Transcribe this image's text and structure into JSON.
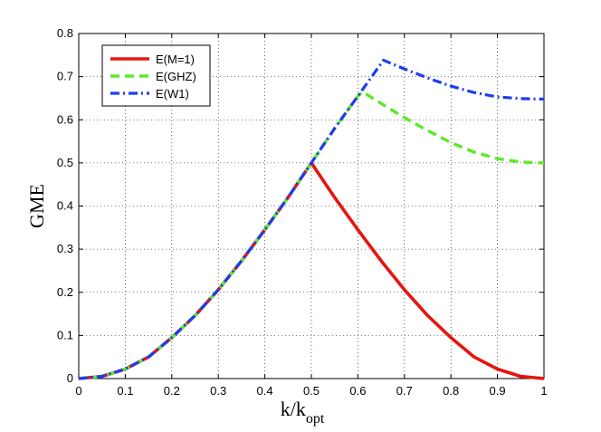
{
  "chart_data": {
    "type": "line",
    "title": "",
    "xlabel": "k/k",
    "xlabel_sub": "opt",
    "ylabel": "GME",
    "xlim": [
      0,
      1
    ],
    "ylim": [
      0,
      0.8
    ],
    "x_ticks": [
      0,
      0.1,
      0.2,
      0.3,
      0.4,
      0.5,
      0.6,
      0.7,
      0.8,
      0.9,
      1
    ],
    "x_tick_labels": [
      "0",
      "0.1",
      "0.2",
      "0.3",
      "0.4",
      "0.5",
      "0.6",
      "0.7",
      "0.8",
      "0.9",
      "1"
    ],
    "y_ticks": [
      0,
      0.1,
      0.2,
      0.3,
      0.4,
      0.5,
      0.6,
      0.7,
      0.8
    ],
    "y_tick_labels": [
      "0",
      "0.1",
      "0.2",
      "0.3",
      "0.4",
      "0.5",
      "0.6",
      "0.7",
      "0.8"
    ],
    "grid": true,
    "legend_position": "top-left",
    "series": [
      {
        "name": "E(M=1)",
        "color": "#e8140f",
        "style": "solid",
        "x": [
          0,
          0.05,
          0.1,
          0.15,
          0.2,
          0.25,
          0.3,
          0.35,
          0.4,
          0.45,
          0.5,
          0.55,
          0.6,
          0.65,
          0.7,
          0.75,
          0.8,
          0.85,
          0.9,
          0.95,
          1
        ],
        "y": [
          0,
          0.005,
          0.022,
          0.05,
          0.095,
          0.146,
          0.206,
          0.273,
          0.345,
          0.42,
          0.5,
          0.42,
          0.345,
          0.273,
          0.206,
          0.146,
          0.095,
          0.05,
          0.022,
          0.005,
          0
        ]
      },
      {
        "name": "E(GHZ)",
        "color": "#5ee82b",
        "style": "dashed",
        "x": [
          0,
          0.05,
          0.1,
          0.15,
          0.2,
          0.25,
          0.3,
          0.35,
          0.4,
          0.45,
          0.5,
          0.55,
          0.6,
          0.61,
          0.65,
          0.7,
          0.75,
          0.8,
          0.85,
          0.9,
          0.95,
          1
        ],
        "y": [
          0,
          0.005,
          0.022,
          0.05,
          0.095,
          0.146,
          0.206,
          0.273,
          0.345,
          0.42,
          0.5,
          0.58,
          0.655,
          0.665,
          0.638,
          0.605,
          0.575,
          0.547,
          0.525,
          0.51,
          0.502,
          0.5
        ]
      },
      {
        "name": "E(W1)",
        "color": "#1e3cf0",
        "style": "dashdot",
        "x": [
          0,
          0.05,
          0.1,
          0.15,
          0.2,
          0.25,
          0.3,
          0.35,
          0.4,
          0.45,
          0.5,
          0.55,
          0.6,
          0.655,
          0.7,
          0.75,
          0.8,
          0.85,
          0.9,
          0.95,
          1
        ],
        "y": [
          0,
          0.005,
          0.022,
          0.05,
          0.095,
          0.146,
          0.206,
          0.273,
          0.345,
          0.42,
          0.5,
          0.58,
          0.655,
          0.738,
          0.718,
          0.697,
          0.678,
          0.663,
          0.653,
          0.649,
          0.648
        ]
      }
    ]
  }
}
